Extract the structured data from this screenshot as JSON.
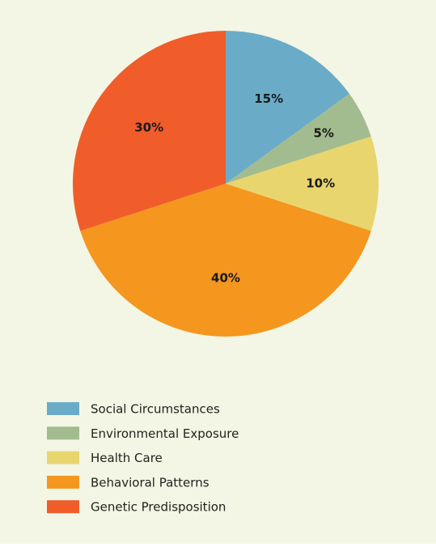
{
  "chart_data": {
    "type": "pie",
    "categories": [
      "Social Circumstances",
      "Environmental Exposure",
      "Health Care",
      "Behavioral Patterns",
      "Genetic Predisposition"
    ],
    "values": [
      15,
      5,
      10,
      40,
      30
    ],
    "value_labels": [
      "15%",
      "5%",
      "10%",
      "40%",
      "30%"
    ],
    "colors": [
      "#6aacc8",
      "#a3bc8f",
      "#e8d56e",
      "#f5961f",
      "#f05d2b"
    ],
    "legend": "bottom-left"
  }
}
